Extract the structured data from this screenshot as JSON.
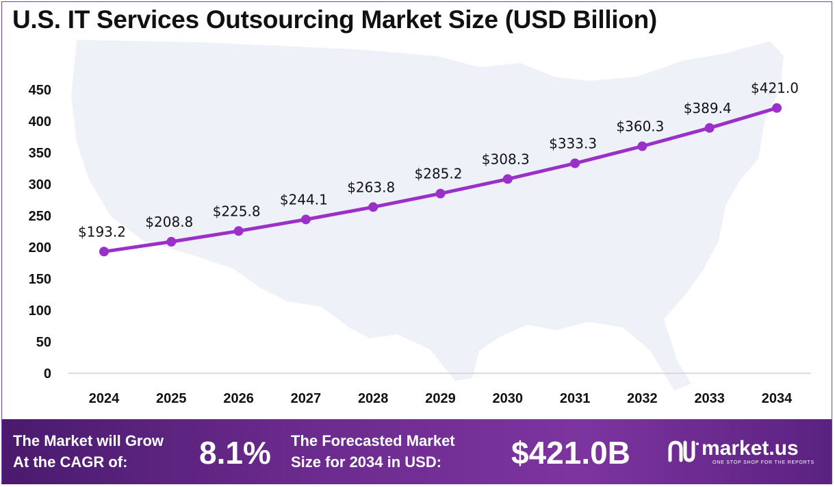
{
  "chart_data": {
    "type": "line",
    "title": "U.S. IT Services Outsourcing Market Size (USD Billion)",
    "xlabel": "",
    "ylabel": "",
    "categories": [
      "2024",
      "2025",
      "2026",
      "2027",
      "2028",
      "2029",
      "2030",
      "2031",
      "2032",
      "2033",
      "2034"
    ],
    "values": [
      193.2,
      208.8,
      225.8,
      244.1,
      263.8,
      285.2,
      308.3,
      333.3,
      360.3,
      389.4,
      421.0
    ],
    "data_labels": [
      "$193.2",
      "$208.8",
      "$225.8",
      "$244.1",
      "$263.8",
      "$285.2",
      "$308.3",
      "$333.3",
      "$360.3",
      "$389.4",
      "$421.0"
    ],
    "ylim": [
      0,
      450
    ],
    "yticks": [
      0,
      50,
      100,
      150,
      200,
      250,
      300,
      350,
      400,
      450
    ],
    "grid": false,
    "legend": "none",
    "line_color": "#9b30c8",
    "background_image": "usa-map-silhouette"
  },
  "footer": {
    "cagr_text_line1": "The Market will Grow",
    "cagr_text_line2": "At the CAGR of:",
    "cagr_value": "8.1%",
    "forecast_text_line1": "The Forecasted Market",
    "forecast_text_line2": "Size for 2034 in USD:",
    "forecast_value": "$421.0B",
    "logo_name": "market.us",
    "logo_tagline": "ONE STOP SHOP FOR THE REPORTS",
    "logo_icon": "market-us-logo-icon"
  },
  "colors": {
    "footer_start": "#4a1a6e",
    "footer_end": "#7d34a0",
    "map": "#eef1f8",
    "border": "#7a3fa0"
  }
}
